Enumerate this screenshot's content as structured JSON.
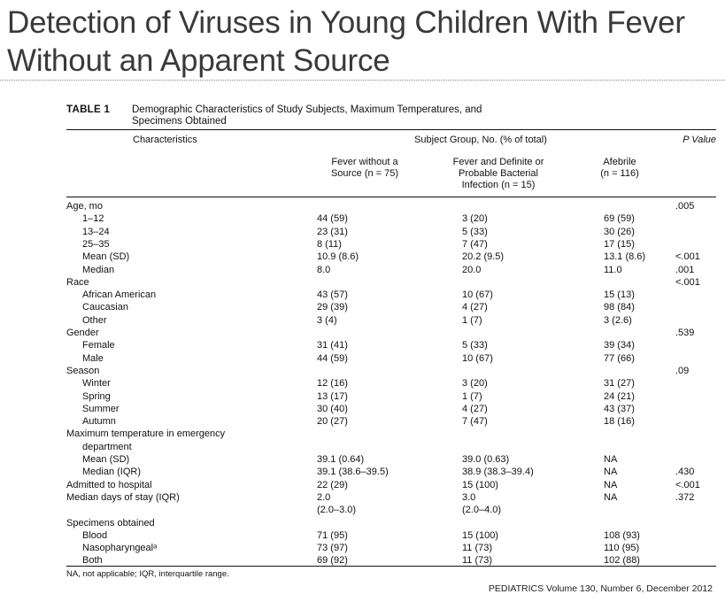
{
  "slide": {
    "title_line1": "Detection of Viruses in Young Children With Fever",
    "title_line2": "Without an Apparent Source"
  },
  "table": {
    "label": "TABLE 1",
    "caption_line1": "Demographic Characteristics of Study Subjects, Maximum Temperatures, and",
    "caption_line2": "Specimens Obtained",
    "header": {
      "characteristics": "Characteristics",
      "subject_group": "Subject Group, No. (% of total)",
      "p_value": "P Value",
      "col1_line1": "Fever without a",
      "col1_line2": "Source (n = 75)",
      "col2_line1": "Fever and Definite or",
      "col2_line2": "Probable Bacterial",
      "col2_line3": "Infection (n = 15)",
      "col3_line1": "Afebrile",
      "col3_line2": "(n = 116)"
    },
    "rows": [
      {
        "label": "Age, mo",
        "sub": false,
        "c1": "",
        "c2": "",
        "c3": "",
        "p": ".005"
      },
      {
        "label": "1–12",
        "sub": true,
        "c1": "44 (59)",
        "c2": "3 (20)",
        "c3": "69 (59)",
        "p": ""
      },
      {
        "label": "13–24",
        "sub": true,
        "c1": "23 (31)",
        "c2": "5 (33)",
        "c3": "30 (26)",
        "p": ""
      },
      {
        "label": "25–35",
        "sub": true,
        "c1": "8 (11)",
        "c2": "7 (47)",
        "c3": "17 (15)",
        "p": ""
      },
      {
        "label": "Mean (SD)",
        "sub": true,
        "c1": "10.9 (8.6)",
        "c2": "20.2 (9.5)",
        "c3": "13.1 (8.6)",
        "p": "<.001"
      },
      {
        "label": "Median",
        "sub": true,
        "c1": "8.0",
        "c2": "20.0",
        "c3": "11.0",
        "p": ".001"
      },
      {
        "label": "Race",
        "sub": false,
        "c1": "",
        "c2": "",
        "c3": "",
        "p": "<.001"
      },
      {
        "label": "African American",
        "sub": true,
        "c1": "43 (57)",
        "c2": "10 (67)",
        "c3": "15 (13)",
        "p": ""
      },
      {
        "label": "Caucasian",
        "sub": true,
        "c1": "29 (39)",
        "c2": "4 (27)",
        "c3": "98 (84)",
        "p": ""
      },
      {
        "label": "Other",
        "sub": true,
        "c1": "3 (4)",
        "c2": "1 (7)",
        "c3": "3 (2.6)",
        "p": ""
      },
      {
        "label": "Gender",
        "sub": false,
        "c1": "",
        "c2": "",
        "c3": "",
        "p": ".539"
      },
      {
        "label": "Female",
        "sub": true,
        "c1": "31 (41)",
        "c2": "5 (33)",
        "c3": "39 (34)",
        "p": ""
      },
      {
        "label": "Male",
        "sub": true,
        "c1": "44 (59)",
        "c2": "10 (67)",
        "c3": "77 (66)",
        "p": ""
      },
      {
        "label": "Season",
        "sub": false,
        "c1": "",
        "c2": "",
        "c3": "",
        "p": ".09"
      },
      {
        "label": "Winter",
        "sub": true,
        "c1": "12 (16)",
        "c2": "3 (20)",
        "c3": "31 (27)",
        "p": ""
      },
      {
        "label": "Spring",
        "sub": true,
        "c1": "13 (17)",
        "c2": "1 (7)",
        "c3": "24 (21)",
        "p": ""
      },
      {
        "label": "Summer",
        "sub": true,
        "c1": "30 (40)",
        "c2": "4 (27)",
        "c3": "43 (37)",
        "p": ""
      },
      {
        "label": "Autumn",
        "sub": true,
        "c1": "20 (27)",
        "c2": "7 (47)",
        "c3": "18 (16)",
        "p": ""
      },
      {
        "label": "Maximum temperature in emergency",
        "sub": false,
        "c1": "",
        "c2": "",
        "c3": "",
        "p": ""
      },
      {
        "label": "department",
        "sub": true,
        "c1": "",
        "c2": "",
        "c3": "",
        "p": ""
      },
      {
        "label": "Mean (SD)",
        "sub": true,
        "c1": "39.1 (0.64)",
        "c2": "39.0 (0.63)",
        "c3": "NA",
        "p": ""
      },
      {
        "label": "Median (IQR)",
        "sub": true,
        "c1": "39.1 (38.6–39.5)",
        "c2": "38.9 (38.3–39.4)",
        "c3": "NA",
        "p": ".430"
      },
      {
        "label": "Admitted to hospital",
        "sub": false,
        "c1": "22 (29)",
        "c2": "15 (100)",
        "c3": "NA",
        "p": "<.001"
      },
      {
        "label": "Median days of stay (IQR)",
        "sub": false,
        "c1": "2.0",
        "c2": "3.0",
        "c3": "NA",
        "p": ".372"
      },
      {
        "label": "",
        "sub": false,
        "c1": "(2.0–3.0)",
        "c2": "(2.0–4.0)",
        "c3": "",
        "p": ""
      },
      {
        "label": "Specimens obtained",
        "sub": false,
        "c1": "",
        "c2": "",
        "c3": "",
        "p": ""
      },
      {
        "label": "Blood",
        "sub": true,
        "c1": "71 (95)",
        "c2": "15 (100)",
        "c3": "108 (93)",
        "p": ""
      },
      {
        "label": "Nasopharyngealᵃ",
        "sub": true,
        "c1": "73 (97)",
        "c2": "11 (73)",
        "c3": "110 (95)",
        "p": ""
      },
      {
        "label": "Both",
        "sub": true,
        "c1": "69 (92)",
        "c2": "11 (73)",
        "c3": "102 (88)",
        "p": ""
      }
    ],
    "footnote": "NA, not applicable; IQR, interquartile range."
  },
  "journal": "PEDIATRICS Volume 130, Number 6, December 2012"
}
